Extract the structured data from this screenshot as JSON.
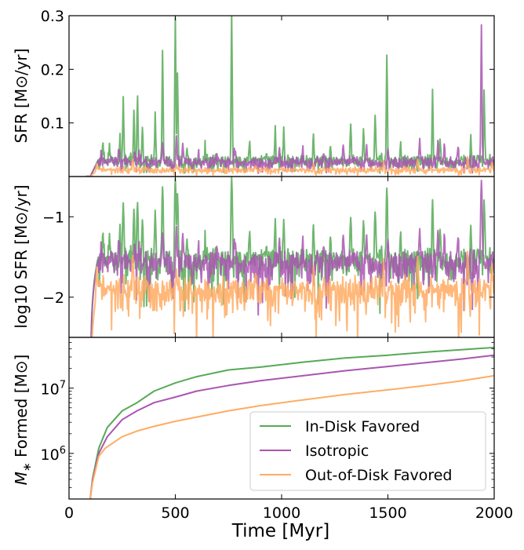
{
  "chart_data": {
    "type": "line",
    "panels": [
      {
        "id": "sfr",
        "ylabel": "SFR [M⊙/yr]",
        "ylim": [
          0.0,
          0.3
        ],
        "yscale": "linear",
        "yticks": [
          {
            "value": 0.1,
            "label": "0.1"
          },
          {
            "value": 0.2,
            "label": "0.2"
          },
          {
            "value": 0.3,
            "label": "0.3"
          }
        ]
      },
      {
        "id": "log-sfr",
        "ylabel": "log10 SFR [M⊙/yr]",
        "ylim": [
          -2.5,
          -0.5
        ],
        "yscale": "linear",
        "yticks": [
          {
            "value": -1,
            "label": "−1"
          },
          {
            "value": -2,
            "label": "−2"
          }
        ]
      },
      {
        "id": "mstar",
        "ylabel": "M∗ Formed [M⊙]",
        "ylim": [
          200000,
          60000000
        ],
        "yscale": "log",
        "yticks": [
          {
            "value": 1000000,
            "label": "10",
            "exp": "6"
          },
          {
            "value": 10000000,
            "label": "10",
            "exp": "7"
          }
        ]
      }
    ],
    "xlabel": "Time [Myr]",
    "xlim": [
      0,
      2000
    ],
    "xticks": [
      {
        "value": 0,
        "label": "0"
      },
      {
        "value": 500,
        "label": "500"
      },
      {
        "value": 1000,
        "label": "1000"
      },
      {
        "value": 1500,
        "label": "1500"
      },
      {
        "value": 2000,
        "label": "2000"
      }
    ],
    "series": [
      {
        "name": "In-Disk Favored",
        "color": "#57a957",
        "sfr_base": 0.028,
        "sfr_peaks": [
          {
            "x": 160,
            "y": 0.062
          },
          {
            "x": 190,
            "y": 0.058
          },
          {
            "x": 240,
            "y": 0.075
          },
          {
            "x": 255,
            "y": 0.15
          },
          {
            "x": 305,
            "y": 0.118
          },
          {
            "x": 322,
            "y": 0.152
          },
          {
            "x": 345,
            "y": 0.09
          },
          {
            "x": 405,
            "y": 0.12
          },
          {
            "x": 440,
            "y": 0.245
          },
          {
            "x": 500,
            "y": 0.3
          },
          {
            "x": 510,
            "y": 0.2
          },
          {
            "x": 555,
            "y": 0.05
          },
          {
            "x": 640,
            "y": 0.06
          },
          {
            "x": 765,
            "y": 0.3
          },
          {
            "x": 850,
            "y": 0.072
          },
          {
            "x": 970,
            "y": 0.09
          },
          {
            "x": 1010,
            "y": 0.095
          },
          {
            "x": 1150,
            "y": 0.082
          },
          {
            "x": 1230,
            "y": 0.058
          },
          {
            "x": 1325,
            "y": 0.11
          },
          {
            "x": 1385,
            "y": 0.092
          },
          {
            "x": 1440,
            "y": 0.12
          },
          {
            "x": 1495,
            "y": 0.23
          },
          {
            "x": 1560,
            "y": 0.06
          },
          {
            "x": 1710,
            "y": 0.16
          },
          {
            "x": 1745,
            "y": 0.08
          },
          {
            "x": 1890,
            "y": 0.07
          },
          {
            "x": 1953,
            "y": 0.16
          }
        ],
        "mass_points": [
          [
            100,
            200000
          ],
          [
            110,
            400000
          ],
          [
            140,
            1200000
          ],
          [
            180,
            2500000
          ],
          [
            250,
            4500000
          ],
          [
            320,
            6000000
          ],
          [
            400,
            9000000
          ],
          [
            500,
            12000000
          ],
          [
            600,
            15000000
          ],
          [
            750,
            19000000
          ],
          [
            900,
            21000000
          ],
          [
            1100,
            25000000
          ],
          [
            1300,
            29000000
          ],
          [
            1500,
            32000000
          ],
          [
            1700,
            36000000
          ],
          [
            1850,
            39000000
          ],
          [
            2000,
            42000000
          ]
        ]
      },
      {
        "name": "Isotropic",
        "color": "#a856b0",
        "sfr_base": 0.026,
        "sfr_peaks": [
          {
            "x": 150,
            "y": 0.045
          },
          {
            "x": 200,
            "y": 0.052
          },
          {
            "x": 235,
            "y": 0.05
          },
          {
            "x": 310,
            "y": 0.05
          },
          {
            "x": 330,
            "y": 0.055
          },
          {
            "x": 440,
            "y": 0.068
          },
          {
            "x": 505,
            "y": 0.078
          },
          {
            "x": 535,
            "y": 0.062
          },
          {
            "x": 610,
            "y": 0.05
          },
          {
            "x": 700,
            "y": 0.042
          },
          {
            "x": 780,
            "y": 0.06
          },
          {
            "x": 990,
            "y": 0.065
          },
          {
            "x": 1100,
            "y": 0.05
          },
          {
            "x": 1200,
            "y": 0.045
          },
          {
            "x": 1290,
            "y": 0.05
          },
          {
            "x": 1400,
            "y": 0.055
          },
          {
            "x": 1500,
            "y": 0.055
          },
          {
            "x": 1650,
            "y": 0.062
          },
          {
            "x": 1735,
            "y": 0.068
          },
          {
            "x": 1765,
            "y": 0.06
          },
          {
            "x": 1830,
            "y": 0.055
          },
          {
            "x": 1940,
            "y": 0.285
          }
        ],
        "mass_points": [
          [
            100,
            200000
          ],
          [
            110,
            380000
          ],
          [
            140,
            1000000
          ],
          [
            180,
            1800000
          ],
          [
            250,
            3300000
          ],
          [
            320,
            4500000
          ],
          [
            400,
            6000000
          ],
          [
            500,
            7300000
          ],
          [
            600,
            9000000
          ],
          [
            750,
            11000000
          ],
          [
            900,
            13000000
          ],
          [
            1100,
            15500000
          ],
          [
            1300,
            18500000
          ],
          [
            1500,
            21500000
          ],
          [
            1700,
            25000000
          ],
          [
            1850,
            28000000
          ],
          [
            2000,
            32000000
          ]
        ]
      },
      {
        "name": "Out-of-Disk Favored",
        "color": "#ffac63",
        "sfr_base": 0.012,
        "sfr_peaks": [
          {
            "x": 130,
            "y": 0.025
          },
          {
            "x": 300,
            "y": 0.03
          },
          {
            "x": 505,
            "y": 0.025
          },
          {
            "x": 880,
            "y": 0.02
          },
          {
            "x": 1150,
            "y": 0.022
          },
          {
            "x": 1480,
            "y": 0.03
          },
          {
            "x": 1640,
            "y": 0.032
          },
          {
            "x": 1700,
            "y": 0.02
          },
          {
            "x": 1875,
            "y": 0.035
          },
          {
            "x": 1990,
            "y": 0.025
          }
        ],
        "mass_points": [
          [
            100,
            200000
          ],
          [
            110,
            350000
          ],
          [
            140,
            900000
          ],
          [
            170,
            1200000
          ],
          [
            250,
            1800000
          ],
          [
            320,
            2200000
          ],
          [
            400,
            2600000
          ],
          [
            500,
            3100000
          ],
          [
            600,
            3600000
          ],
          [
            750,
            4500000
          ],
          [
            900,
            5400000
          ],
          [
            1100,
            6600000
          ],
          [
            1300,
            8000000
          ],
          [
            1500,
            9400000
          ],
          [
            1700,
            11200000
          ],
          [
            1850,
            13000000
          ],
          [
            2000,
            15500000
          ]
        ]
      }
    ],
    "legend": {
      "position": "lower-right",
      "panel": "mstar",
      "entries": [
        "In-Disk Favored",
        "Isotropic",
        "Out-of-Disk Favored"
      ]
    }
  }
}
